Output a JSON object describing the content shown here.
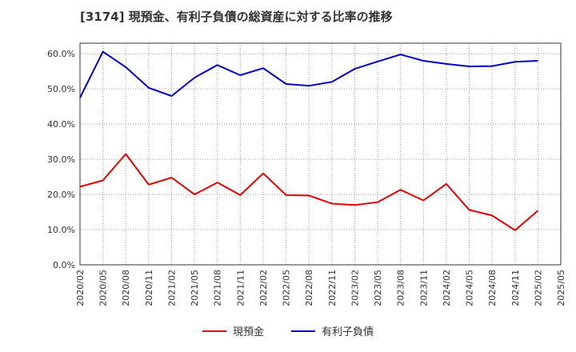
{
  "chart_data": {
    "type": "line",
    "title": "[3174]  現預金、有利子負債の総資産に対する比率の推移",
    "x": [
      "2020/02",
      "2020/05",
      "2020/08",
      "2020/11",
      "2021/02",
      "2021/05",
      "2021/08",
      "2021/11",
      "2022/02",
      "2022/05",
      "2022/08",
      "2022/11",
      "2023/02",
      "2023/05",
      "2023/08",
      "2023/11",
      "2024/02",
      "2024/05",
      "2024/08",
      "2024/11",
      "2025/02",
      "2025/05"
    ],
    "y_ticks": [
      "0.0%",
      "10.0%",
      "20.0%",
      "30.0%",
      "40.0%",
      "50.0%",
      "60.0%"
    ],
    "ylim": [
      0,
      60
    ],
    "series": [
      {
        "name": "現預金",
        "color": "#e60000",
        "values": [
          22.2,
          24.0,
          31.5,
          22.8,
          24.8,
          20.0,
          23.4,
          19.8,
          26.0,
          19.8,
          19.7,
          17.4,
          17.0,
          17.8,
          21.3,
          18.3,
          23.0,
          15.6,
          14.0,
          9.8,
          15.4,
          null
        ]
      },
      {
        "name": "有利子負債",
        "color": "#0000cc",
        "values": [
          47.5,
          60.6,
          56.2,
          50.3,
          48.0,
          53.2,
          56.8,
          53.9,
          55.9,
          51.4,
          50.9,
          52.0,
          55.7,
          57.8,
          59.8,
          58.0,
          57.1,
          56.4,
          56.5,
          57.7,
          58.0,
          null
        ]
      }
    ],
    "legend": [
      "現預金",
      "有利子負債"
    ]
  }
}
